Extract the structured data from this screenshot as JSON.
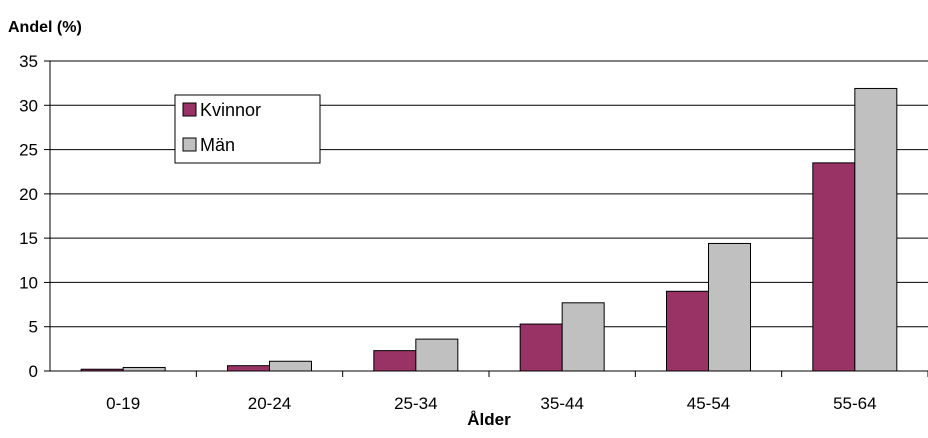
{
  "chart_data": {
    "type": "bar",
    "title": "",
    "ylabel": "Andel (%)",
    "xlabel": "Ålder",
    "ylim": [
      0,
      35
    ],
    "yticks": [
      "0",
      "5",
      "10",
      "15",
      "20",
      "25",
      "30",
      "35"
    ],
    "categories": [
      "0-19",
      "20-24",
      "25-34",
      "35-44",
      "45-54",
      "55-64"
    ],
    "series": [
      {
        "name": "Kvinnor",
        "color": "#993366",
        "values": [
          0.2,
          0.6,
          2.3,
          5.3,
          9.0,
          23.5
        ]
      },
      {
        "name": "Män",
        "color": "#c0c0c0",
        "values": [
          0.4,
          1.1,
          3.6,
          7.7,
          14.4,
          31.9
        ]
      }
    ],
    "grid": true,
    "legend_position": "top-left"
  }
}
